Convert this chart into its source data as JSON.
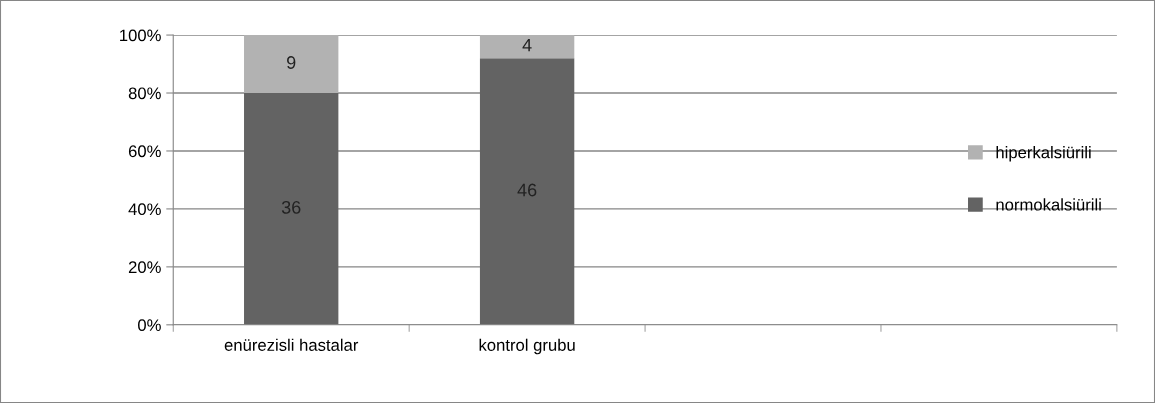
{
  "chart_data": {
    "type": "bar",
    "stacked": true,
    "categories": [
      "enürezisli hastalar",
      "kontrol grubu",
      null,
      null
    ],
    "series": [
      {
        "name": "normokalsiürili",
        "color": "#636363",
        "values": [
          80,
          92,
          null,
          null
        ]
      },
      {
        "name": "hiperkalsiürili",
        "color": "#b2b2b2",
        "values": [
          20,
          8,
          null,
          null
        ]
      }
    ],
    "annotations": [
      "36",
      "46",
      "9",
      "4"
    ],
    "ylim": [
      0,
      100
    ],
    "yticks": [
      {
        "value": 0,
        "label": "0%"
      },
      {
        "value": 20,
        "label": "20%"
      },
      {
        "value": 40,
        "label": "40%"
      },
      {
        "value": 60,
        "label": "60%"
      },
      {
        "value": 80,
        "label": "80%"
      },
      {
        "value": 100,
        "label": "100%"
      }
    ],
    "grid": "y",
    "legend": "right"
  }
}
